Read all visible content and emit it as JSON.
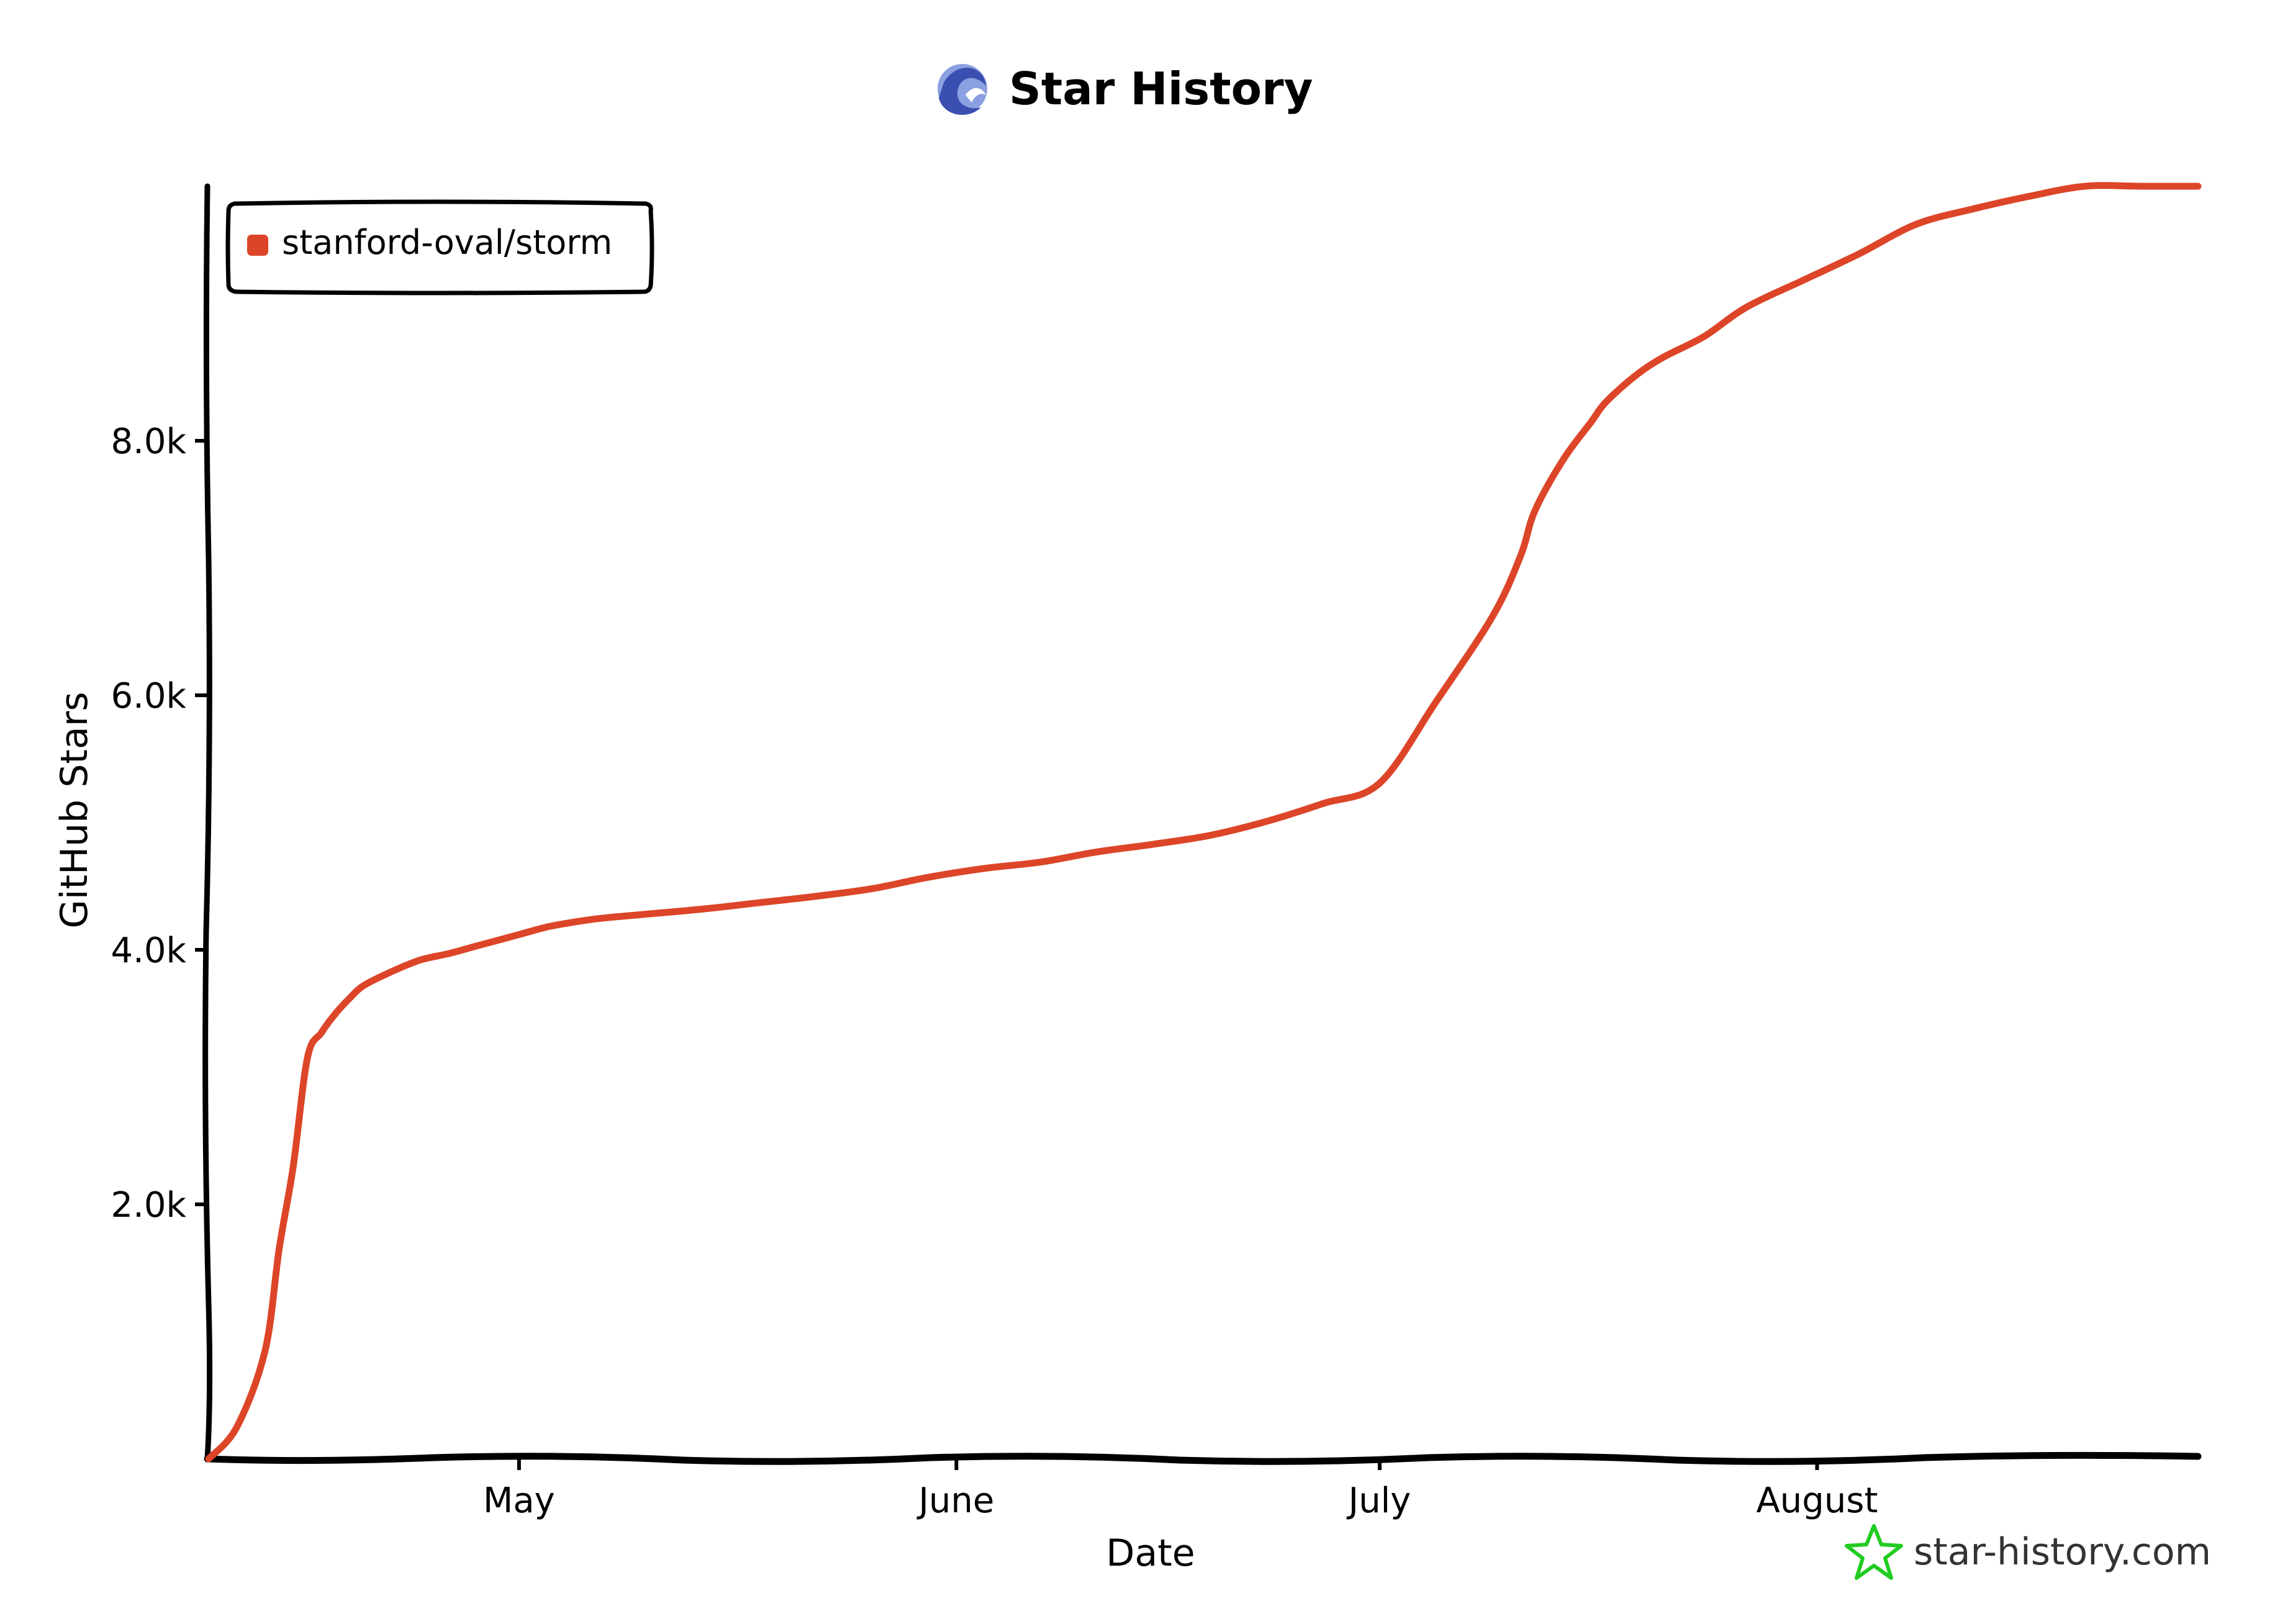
{
  "title": "Star History",
  "watermark": "star-history.com",
  "colors": {
    "series": "#dd4528",
    "axis": "#000000",
    "brand_star": "#22cc22",
    "logo_light": "#8aa0e0",
    "logo_dark": "#3b4fb0"
  },
  "icons": {
    "title_logo": "star-history-logo-icon",
    "watermark_logo": "star-outline-icon"
  },
  "chart_data": {
    "type": "line",
    "title": "Star History",
    "xlabel": "Date",
    "ylabel": "GitHub Stars",
    "x_ticks": [
      "May",
      "June",
      "July",
      "August"
    ],
    "y_ticks": [
      "2.0k",
      "4.0k",
      "6.0k",
      "8.0k"
    ],
    "ylim": [
      0,
      10000
    ],
    "grid": false,
    "legend": "top-left",
    "series": [
      {
        "name": "stanford-oval/storm",
        "x": [
          "2024-04-09",
          "2024-04-11",
          "2024-04-13",
          "2024-04-14",
          "2024-04-15",
          "2024-04-16",
          "2024-04-17",
          "2024-04-18",
          "2024-04-19",
          "2024-04-20",
          "2024-04-22",
          "2024-04-24",
          "2024-04-26",
          "2024-04-28",
          "2024-05-01",
          "2024-05-03",
          "2024-05-05",
          "2024-05-07",
          "2024-05-10",
          "2024-05-14",
          "2024-05-18",
          "2024-05-22",
          "2024-05-26",
          "2024-05-30",
          "2024-06-03",
          "2024-06-07",
          "2024-06-11",
          "2024-06-15",
          "2024-06-19",
          "2024-06-23",
          "2024-06-27",
          "2024-07-01",
          "2024-07-05",
          "2024-07-09",
          "2024-07-11",
          "2024-07-12",
          "2024-07-14",
          "2024-07-16",
          "2024-07-17",
          "2024-07-19",
          "2024-07-21",
          "2024-07-24",
          "2024-07-27",
          "2024-07-31",
          "2024-08-04",
          "2024-08-08",
          "2024-08-12",
          "2024-08-16",
          "2024-08-20",
          "2024-08-24",
          "2024-08-28"
        ],
        "y": [
          0,
          250,
          850,
          1650,
          2300,
          3150,
          3350,
          3500,
          3620,
          3720,
          3830,
          3920,
          3970,
          4030,
          4120,
          4180,
          4220,
          4250,
          4280,
          4320,
          4370,
          4420,
          4480,
          4570,
          4640,
          4690,
          4770,
          4830,
          4900,
          5010,
          5150,
          5310,
          5950,
          6620,
          7100,
          7450,
          7850,
          8150,
          8300,
          8500,
          8650,
          8820,
          9050,
          9260,
          9470,
          9700,
          9820,
          9920,
          10000,
          10000,
          10000
        ]
      }
    ]
  }
}
